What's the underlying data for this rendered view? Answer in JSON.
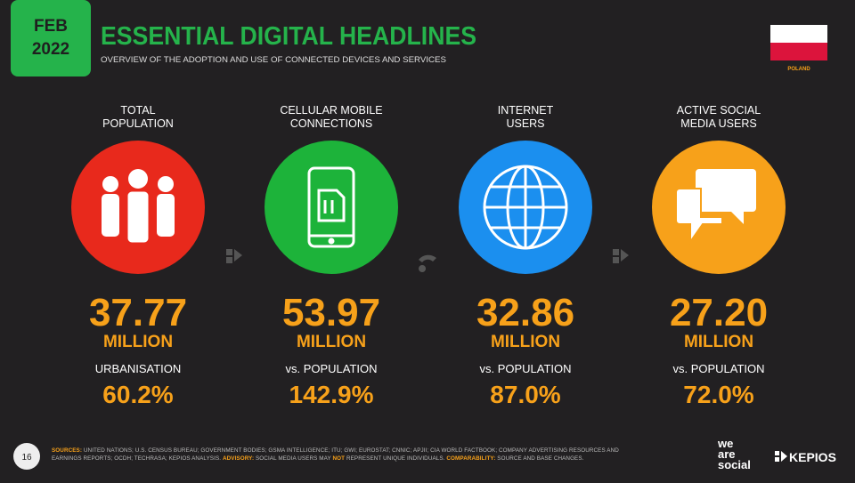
{
  "header": {
    "date": [
      "FEB",
      "2022"
    ],
    "title": "ESSENTIAL DIGITAL HEADLINES",
    "subtitle": "OVERVIEW OF THE ADOPTION AND USE OF CONNECTED DEVICES AND SERVICES",
    "country": "POLAND"
  },
  "stats": [
    {
      "label": [
        "TOTAL",
        "POPULATION"
      ],
      "value": "37.77",
      "unit": "MILLION",
      "sub_label": "URBANISATION",
      "sub_value": "60.2%"
    },
    {
      "label": [
        "CELLULAR MOBILE",
        "CONNECTIONS"
      ],
      "value": "53.97",
      "unit": "MILLION",
      "sub_label": "vs. POPULATION",
      "sub_value": "142.9%"
    },
    {
      "label": [
        "INTERNET",
        "USERS"
      ],
      "value": "32.86",
      "unit": "MILLION",
      "sub_label": "vs. POPULATION",
      "sub_value": "87.0%"
    },
    {
      "label": [
        "ACTIVE SOCIAL",
        "MEDIA USERS"
      ],
      "value": "27.20",
      "unit": "MILLION",
      "sub_label": "vs. POPULATION",
      "sub_value": "72.0%"
    }
  ],
  "footer": {
    "page": "16",
    "sources_label": "SOURCES:",
    "sources_text": " UNITED NATIONS; U.S. CENSUS BUREAU; GOVERNMENT BODIES; GSMA INTELLIGENCE; ITU; GWI; EUROSTAT; CNNIC; APJII; CIA WORLD FACTBOOK; COMPANY ADVERTISING RESOURCES AND EARNINGS REPORTS; OCDH; TECHRASA; KEPIOS ANALYSIS. ",
    "advisory_label": "ADVISORY:",
    "advisory_text_1": " SOCIAL MEDIA USERS MAY ",
    "advisory_not": "NOT",
    "advisory_text_2": " REPRESENT UNIQUE INDIVIDUALS. ",
    "comparability_label": "COMPARABILITY:",
    "comparability_text": " SOURCE AND BASE CHANGES.",
    "logo_1": [
      "we",
      "are",
      "social"
    ],
    "logo_2": "KEPIOS"
  }
}
